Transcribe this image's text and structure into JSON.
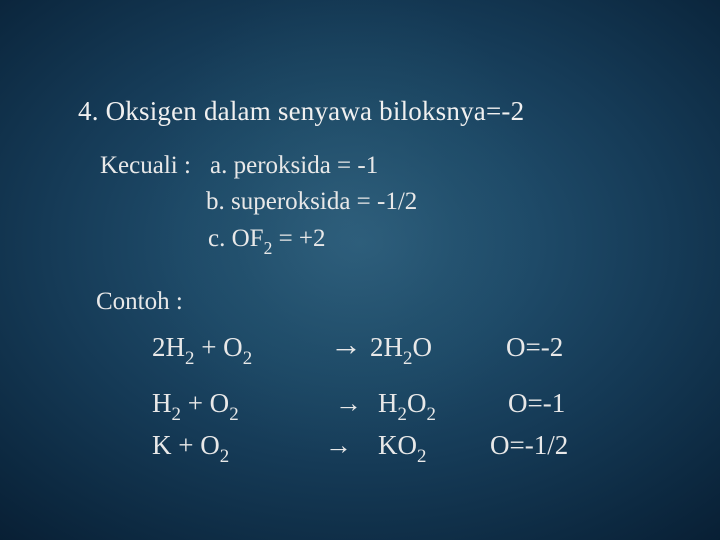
{
  "colors": {
    "text": "#e8e8e8",
    "bg_center": "#2a5a7a",
    "bg_edge": "#020c18"
  },
  "typography": {
    "title_fontsize": 27,
    "body_fontsize": 25,
    "eq_fontsize": 27,
    "font_family": "Georgia serif"
  },
  "title": "4. Oksigen dalam senyawa biloksnya=-2",
  "exception_label": "Kecuali :",
  "exceptions": {
    "a": "a. peroksida = -1",
    "b": "b. superoksida = -1/2",
    "c_prefix": "c. OF",
    "c_sub": "2",
    "c_suffix": " = +2"
  },
  "contoh": "Contoh :",
  "equations": [
    {
      "lhs_a": "2H",
      "lhs_a_sub": "2",
      "lhs_mid": "  +  O",
      "lhs_b_sub": "2",
      "arrow": "→",
      "rhs_a": "2H",
      "rhs_a_sub": "2",
      "rhs_b": "O",
      "result": "O=-2"
    },
    {
      "lhs_a": "H",
      "lhs_a_sub": "2",
      "lhs_mid": "  +  O",
      "lhs_b_sub": "2",
      "arrow": "→",
      "rhs_a": "H",
      "rhs_a_sub": "2",
      "rhs_b": "O",
      "rhs_b_sub": "2",
      "result": "O=-1"
    },
    {
      "lhs_a": "K",
      "lhs_mid": "    +  O",
      "lhs_b_sub": "2",
      "arrow": "→",
      "rhs_a": "KO",
      "rhs_a_sub": "2",
      "result": "O=-1/2"
    }
  ]
}
